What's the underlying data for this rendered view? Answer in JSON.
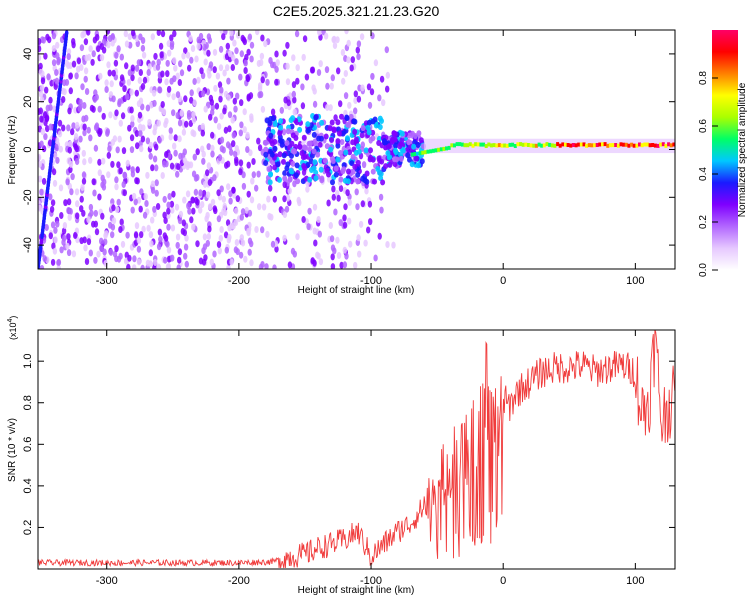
{
  "figure_title": "C2E5.2025.321.21.23.G20",
  "chart_data": [
    {
      "type": "heatmap",
      "title": "C2E5.2025.321.21.23.G20",
      "xlabel": "Height of straight line (km)",
      "ylabel": "Frequency (Hz)",
      "xlim": [
        -352,
        130
      ],
      "ylim": [
        -50,
        50
      ],
      "xticks": [
        -300,
        -200,
        -100,
        0,
        100
      ],
      "yticks": [
        -40,
        -20,
        0,
        20,
        40
      ],
      "dominant_frequency_hz": 1.5,
      "colorbar": {
        "label": "Normalized spectral amplitude",
        "range": [
          0,
          1
        ],
        "ticks": [
          0.0,
          0.2,
          0.4,
          0.6,
          0.8
        ],
        "colors": [
          "#ffffff",
          "#e6c8ff",
          "#b266ff",
          "#7f00ff",
          "#1a1aff",
          "#00c8ff",
          "#00ff66",
          "#aaff00",
          "#ffff00",
          "#ff8000",
          "#ff0000",
          "#ff0066"
        ]
      }
    },
    {
      "type": "line",
      "xlabel": "Height of straight line (km)",
      "ylabel": "SNR (10 * v/v)",
      "y_multiplier": "(x10",
      "y_multiplier_exp": "4",
      "y_multiplier_close": ")",
      "xlim": [
        -352,
        130
      ],
      "ylim": [
        0,
        1.15
      ],
      "xticks": [
        -300,
        -200,
        -100,
        0,
        100
      ],
      "yticks": [
        0.2,
        0.4,
        0.6,
        0.8,
        1.0
      ],
      "line_color": "#f03c3c",
      "series": [
        {
          "name": "SNR",
          "x": [
            -352,
            -300,
            -250,
            -200,
            -175,
            -160,
            -150,
            -140,
            -130,
            -120,
            -110,
            -100,
            -95,
            -90,
            -80,
            -70,
            -60,
            -50,
            -45,
            -40,
            -35,
            -30,
            -25,
            -20,
            -15,
            -10,
            -5,
            0,
            5,
            10,
            20,
            30,
            40,
            50,
            60,
            70,
            80,
            90,
            100,
            105,
            110,
            115,
            120,
            125,
            130
          ],
          "values": [
            0.03,
            0.03,
            0.03,
            0.03,
            0.035,
            0.06,
            0.07,
            0.1,
            0.12,
            0.14,
            0.18,
            0.06,
            0.09,
            0.12,
            0.18,
            0.22,
            0.3,
            0.4,
            0.45,
            0.5,
            0.52,
            0.55,
            0.6,
            0.75,
            0.8,
            0.85,
            0.65,
            0.82,
            0.78,
            0.85,
            0.9,
            0.95,
            0.97,
            0.97,
            0.98,
            0.95,
            0.97,
            0.98,
            0.95,
            0.75,
            0.8,
            1.1,
            0.7,
            0.8,
            0.8
          ]
        }
      ]
    }
  ]
}
